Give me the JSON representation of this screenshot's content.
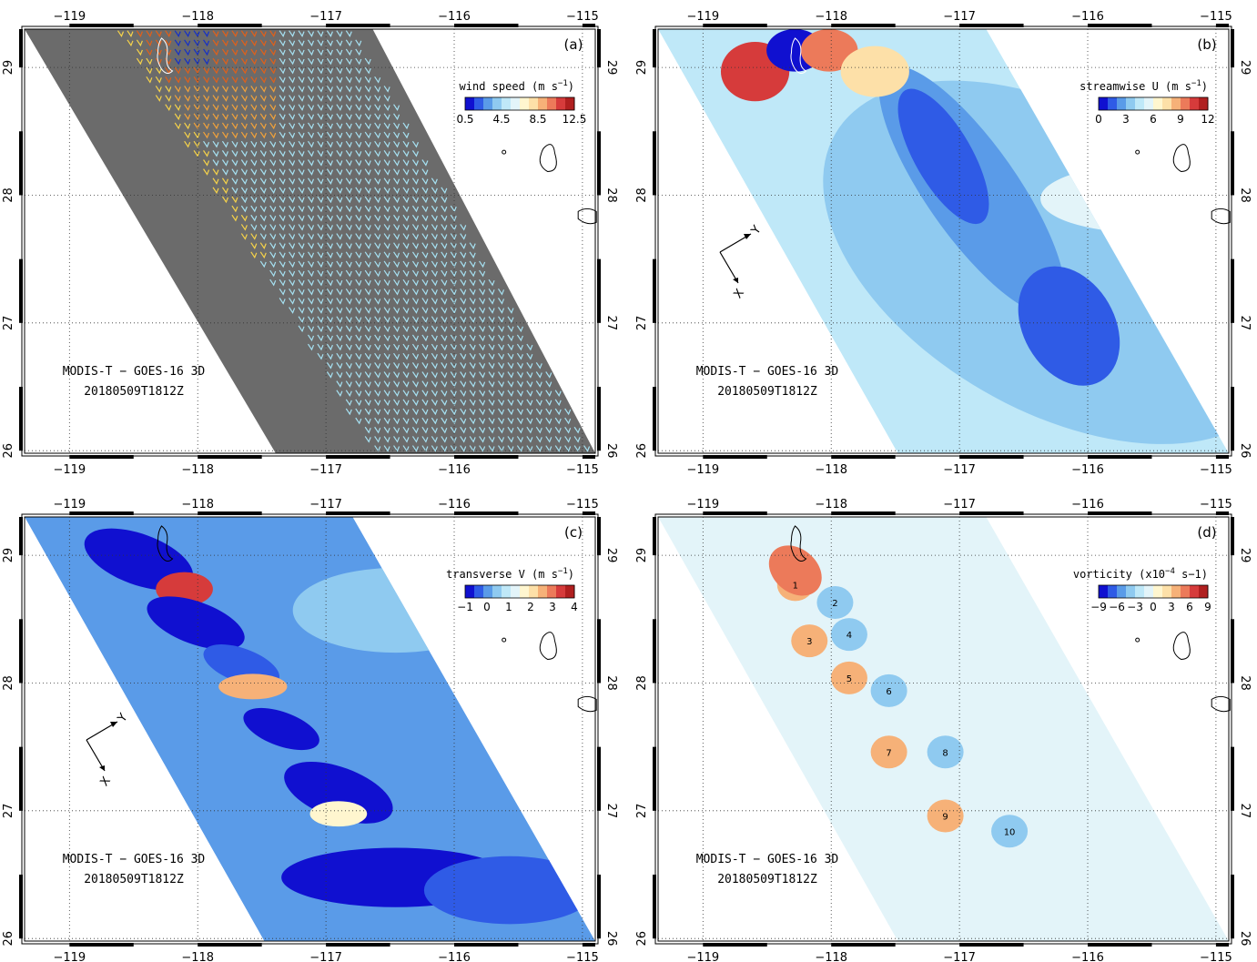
{
  "colors": {
    "blue_ramp": [
      "#1010d0",
      "#2f5be6",
      "#5a9be8",
      "#8fcaf0",
      "#bfe8f8",
      "#e3f4f9"
    ],
    "red_ramp": [
      "#fff6cf",
      "#fde0a8",
      "#f6b178",
      "#ec7a5a",
      "#d63b3b",
      "#b01f1f"
    ],
    "satellite_gray": "#6b6b6b",
    "wind_arrow": "#a6e1f2"
  },
  "chart_data": [
    {
      "type": "heatmap",
      "panel": "(a)",
      "x_ticks": [
        "−119",
        "−118",
        "−117",
        "−116",
        "−115"
      ],
      "y_ticks": [
        "26",
        "27",
        "28",
        "29"
      ],
      "xlim": [
        -119.35,
        -114.9
      ],
      "ylim": [
        25.98,
        29.3
      ],
      "colorbar": {
        "title": "wind speed (m s",
        "title_sup": "−1",
        "title_end": ")",
        "ticks": [
          "0.5",
          "4.5",
          "8.5",
          "12.5"
        ]
      },
      "annotation_lines": [
        "MODIS-T − GOES-16 3D",
        "20180509T1812Z"
      ],
      "vectors": "quiver field of wind vectors, mostly light blue (≈4–6 m/s), orange/red (8–12 m/s) in the northwest"
    },
    {
      "type": "heatmap",
      "panel": "(b)",
      "x_ticks": [
        "−119",
        "−118",
        "−117",
        "−116",
        "−115"
      ],
      "y_ticks": [
        "26",
        "27",
        "28",
        "29"
      ],
      "xlim": [
        -119.35,
        -114.9
      ],
      "ylim": [
        25.98,
        29.3
      ],
      "colorbar": {
        "title": "streamwise U (m s",
        "title_sup": "−1",
        "title_end": ")",
        "ticks": [
          "0",
          "3",
          "6",
          "9",
          "12"
        ]
      },
      "annotation_lines": [
        "MODIS-T − GOES-16 3D",
        "20180509T1812Z"
      ],
      "axes_labels": [
        "X",
        "Y"
      ]
    },
    {
      "type": "heatmap",
      "panel": "(c)",
      "x_ticks": [
        "−119",
        "−118",
        "−117",
        "−116",
        "−115"
      ],
      "y_ticks": [
        "26",
        "27",
        "28",
        "29"
      ],
      "xlim": [
        -119.35,
        -114.9
      ],
      "ylim": [
        25.98,
        29.3
      ],
      "colorbar": {
        "title": "transverse V (m s",
        "title_sup": "−1",
        "title_end": ")",
        "ticks": [
          "−1",
          "0",
          "1",
          "2",
          "3",
          "4"
        ]
      },
      "annotation_lines": [
        "MODIS-T − GOES-16 3D",
        "20180509T1812Z"
      ],
      "axes_labels": [
        "X",
        "Y"
      ]
    },
    {
      "type": "heatmap",
      "panel": "(d)",
      "x_ticks": [
        "−119",
        "−118",
        "−117",
        "−116",
        "−115"
      ],
      "y_ticks": [
        "26",
        "27",
        "28",
        "29"
      ],
      "xlim": [
        -119.35,
        -114.9
      ],
      "ylim": [
        25.98,
        29.3
      ],
      "colorbar": {
        "title": "vorticity (x10",
        "title_sup": "−4",
        "title_end": " s−1)",
        "ticks": [
          "−9",
          "−6",
          "−3",
          "0",
          "3",
          "6",
          "9"
        ]
      },
      "annotation_lines": [
        "MODIS-T − GOES-16 3D",
        "20180509T1812Z"
      ],
      "eddies": [
        {
          "label": "1",
          "lon": -118.28,
          "lat": 28.77,
          "sign": "positive"
        },
        {
          "label": "2",
          "lon": -117.97,
          "lat": 28.63,
          "sign": "negative"
        },
        {
          "label": "3",
          "lon": -118.17,
          "lat": 28.33,
          "sign": "positive"
        },
        {
          "label": "4",
          "lon": -117.86,
          "lat": 28.38,
          "sign": "negative"
        },
        {
          "label": "5",
          "lon": -117.86,
          "lat": 28.04,
          "sign": "positive"
        },
        {
          "label": "6",
          "lon": -117.55,
          "lat": 27.94,
          "sign": "negative"
        },
        {
          "label": "7",
          "lon": -117.55,
          "lat": 27.46,
          "sign": "positive"
        },
        {
          "label": "8",
          "lon": -117.11,
          "lat": 27.46,
          "sign": "negative"
        },
        {
          "label": "9",
          "lon": -117.11,
          "lat": 26.96,
          "sign": "positive"
        },
        {
          "label": "10",
          "lon": -116.61,
          "lat": 26.84,
          "sign": "negative"
        }
      ]
    }
  ]
}
